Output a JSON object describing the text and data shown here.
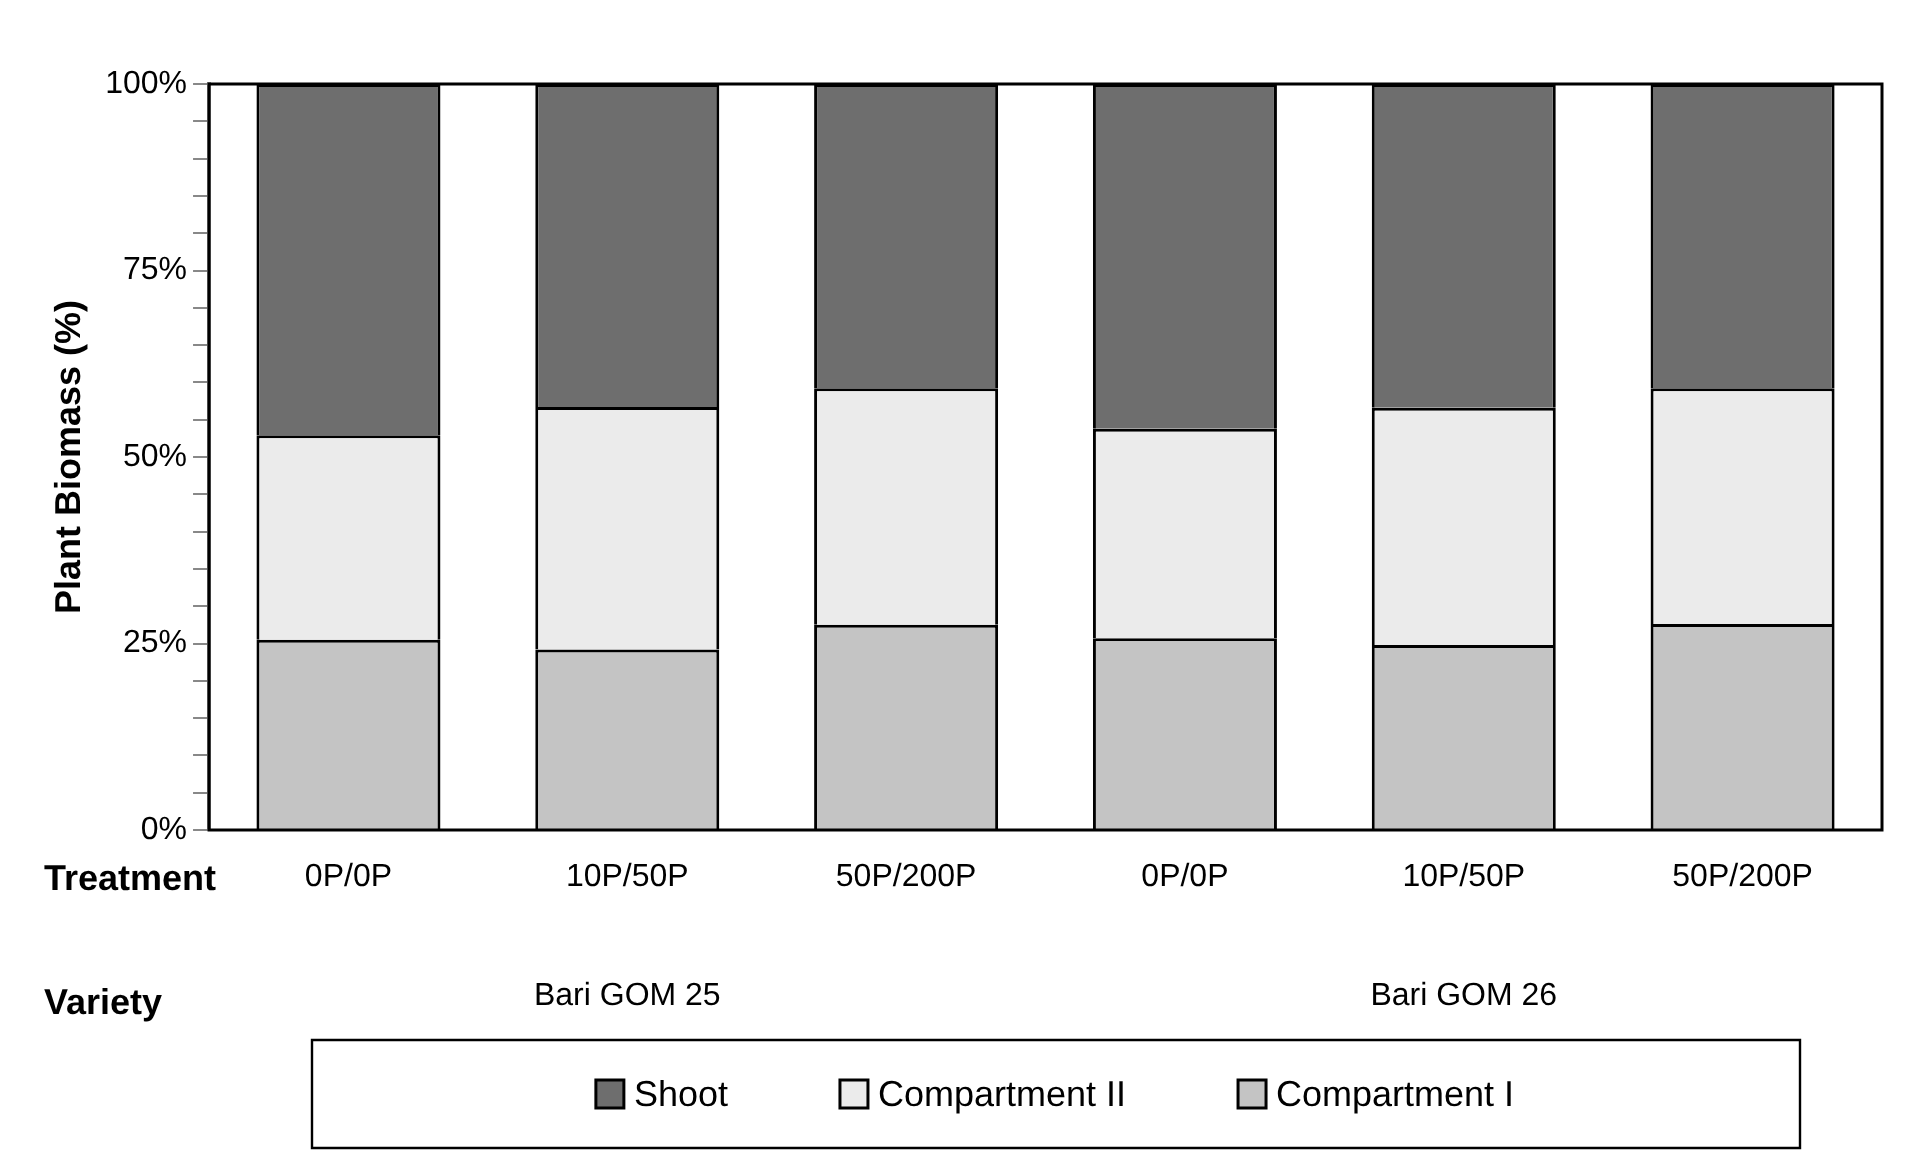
{
  "chart_data": {
    "type": "bar",
    "stacked": true,
    "ylabel": "Plant Biomass (%)",
    "categories": [
      "0P/0P",
      "10P/50P",
      "50P/200P",
      "0P/0P",
      "10P/50P",
      "50P/200P"
    ],
    "series": [
      {
        "name": "Compartment I",
        "color": "#c4c4c4",
        "values": [
          25.5,
          24.2,
          27.5,
          25.7,
          24.8,
          27.6
        ]
      },
      {
        "name": "Compartment II",
        "color": "#ebebeb",
        "values": [
          27.4,
          32.5,
          31.7,
          28.1,
          31.8,
          31.6
        ]
      },
      {
        "name": "Shoot",
        "color": "#6e6e6e",
        "values": [
          47.1,
          43.3,
          40.8,
          46.2,
          43.4,
          40.8
        ]
      }
    ],
    "ylim": [
      0,
      100
    ],
    "yticks": [
      {
        "value": 0,
        "label": "0%"
      },
      {
        "value": 5,
        "label": null
      },
      {
        "value": 10,
        "label": null
      },
      {
        "value": 15,
        "label": null
      },
      {
        "value": 20,
        "label": null
      },
      {
        "value": 25,
        "label": "25%"
      },
      {
        "value": 30,
        "label": null
      },
      {
        "value": 35,
        "label": null
      },
      {
        "value": 40,
        "label": null
      },
      {
        "value": 45,
        "label": null
      },
      {
        "value": 50,
        "label": "50%"
      },
      {
        "value": 55,
        "label": null
      },
      {
        "value": 60,
        "label": null
      },
      {
        "value": 65,
        "label": null
      },
      {
        "value": 70,
        "label": null
      },
      {
        "value": 75,
        "label": "75%"
      },
      {
        "value": 80,
        "label": null
      },
      {
        "value": 85,
        "label": null
      },
      {
        "value": 90,
        "label": null
      },
      {
        "value": 95,
        "label": null
      },
      {
        "value": 100,
        "label": "100%"
      }
    ],
    "annotations": [
      "Treatment",
      "Variety",
      "Bari GOM 25",
      "Bari GOM 26"
    ],
    "legend": "bottom"
  }
}
